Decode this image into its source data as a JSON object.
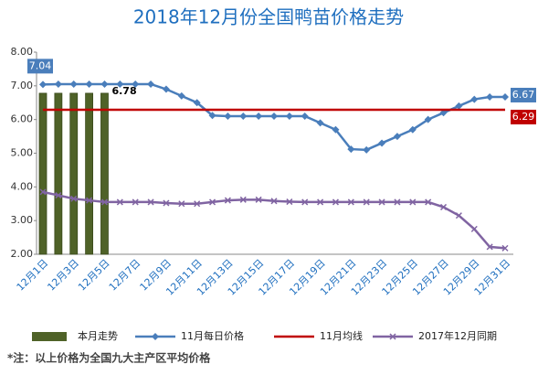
{
  "chart_data": {
    "type": "combo",
    "title": "2018年12月份全国鸭苗价格走势",
    "categories": [
      "12月1日",
      null,
      "12月3日",
      null,
      "12月5日",
      null,
      "12月7日",
      null,
      "12月9日",
      null,
      "12月11日",
      null,
      "12月13日",
      null,
      "12月15日",
      null,
      "12月17日",
      null,
      "12月19日",
      null,
      "12月21日",
      null,
      "12月23日",
      null,
      "12月25日",
      null,
      "12月27日",
      null,
      "12月29日",
      null,
      "12月31日"
    ],
    "ylim": [
      2,
      8
    ],
    "yticks": [
      {
        "value": 2,
        "label": "2.00"
      },
      {
        "value": 3,
        "label": "3.00"
      },
      {
        "value": 4,
        "label": "4.00"
      },
      {
        "value": 5,
        "label": "5.00"
      },
      {
        "value": 6,
        "label": "6.00"
      },
      {
        "value": 7,
        "label": "7.00"
      },
      {
        "value": 8,
        "label": "8.00"
      }
    ],
    "grid": false,
    "series": [
      {
        "name": "本月走势",
        "type": "bar",
        "color": "#4f6228",
        "labeled_points": [
          4
        ],
        "values": [
          6.78,
          6.78,
          6.78,
          6.78,
          6.78,
          null,
          null,
          null,
          null,
          null,
          null,
          null,
          null,
          null,
          null,
          null,
          null,
          null,
          null,
          null,
          null,
          null,
          null,
          null,
          null,
          null,
          null,
          null,
          null,
          null,
          null
        ]
      },
      {
        "name": "11月每日价格",
        "type": "line",
        "marker": "diamond",
        "color": "#4a7ebb",
        "labeled_points": [
          0,
          30
        ],
        "values": [
          7.04,
          7.05,
          7.05,
          7.05,
          7.05,
          7.05,
          7.05,
          7.05,
          6.9,
          6.7,
          6.5,
          6.12,
          6.1,
          6.1,
          6.1,
          6.1,
          6.1,
          6.1,
          5.9,
          5.7,
          5.12,
          5.1,
          5.3,
          5.5,
          5.7,
          6.0,
          6.2,
          6.4,
          6.6,
          6.67,
          6.67
        ]
      },
      {
        "name": "11月均线",
        "type": "line",
        "marker": "none",
        "color": "#c00000",
        "labeled_points": [
          30
        ],
        "values": [
          6.29,
          6.29,
          6.29,
          6.29,
          6.29,
          6.29,
          6.29,
          6.29,
          6.29,
          6.29,
          6.29,
          6.29,
          6.29,
          6.29,
          6.29,
          6.29,
          6.29,
          6.29,
          6.29,
          6.29,
          6.29,
          6.29,
          6.29,
          6.29,
          6.29,
          6.29,
          6.29,
          6.29,
          6.29,
          6.29,
          6.29
        ]
      },
      {
        "name": "2017年12月同期",
        "type": "line",
        "marker": "x",
        "color": "#8064a2",
        "labeled_points": [],
        "values": [
          3.85,
          3.75,
          3.65,
          3.6,
          3.55,
          3.55,
          3.55,
          3.55,
          3.52,
          3.5,
          3.5,
          3.55,
          3.6,
          3.62,
          3.62,
          3.58,
          3.56,
          3.55,
          3.55,
          3.55,
          3.55,
          3.55,
          3.55,
          3.55,
          3.55,
          3.55,
          3.4,
          3.15,
          2.75,
          2.22,
          2.18
        ]
      }
    ],
    "footnote": "*注：以上价格为全国九大主产区平均价格"
  }
}
